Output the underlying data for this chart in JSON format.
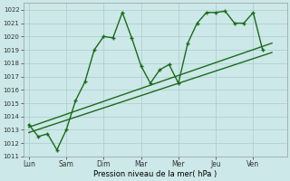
{
  "xlabel": "Pression niveau de la mer( hPa )",
  "bg_color": "#cce8e8",
  "grid_color": "#aacccc",
  "line_color": "#1a6b1a",
  "ylim": [
    1011,
    1022.5
  ],
  "yticks": [
    1011,
    1012,
    1013,
    1014,
    1015,
    1016,
    1017,
    1018,
    1019,
    1020,
    1021,
    1022
  ],
  "day_labels": [
    "Lun",
    "Sam",
    "Dim",
    "Mar",
    "Mer",
    "Jeu",
    "Ven"
  ],
  "day_positions": [
    0,
    2,
    4,
    6,
    8,
    10,
    12
  ],
  "xlim": [
    -0.3,
    13.8
  ],
  "series1_x": [
    0,
    0.5,
    1.0,
    1.5,
    2.0,
    2.5,
    3.0,
    3.5,
    4.0,
    4.5,
    5.0,
    5.5,
    6.0,
    6.5,
    7.0,
    7.5,
    8.0,
    8.5,
    9.0,
    9.5,
    10.0,
    10.5,
    11.0,
    11.5,
    12.0,
    12.5
  ],
  "series1_y": [
    1013.4,
    1012.5,
    1012.7,
    1011.5,
    1013.0,
    1015.2,
    1016.6,
    1019.0,
    1020.0,
    1019.9,
    1021.8,
    1019.9,
    1017.8,
    1016.5,
    1017.5,
    1017.9,
    1016.5,
    1019.5,
    1021.0,
    1021.8,
    1021.8,
    1021.9,
    1021.0,
    1021.0,
    1021.8,
    1019.0
  ],
  "trend1_x": [
    0,
    13
  ],
  "trend1_y": [
    1012.8,
    1018.8
  ],
  "trend2_x": [
    0,
    13
  ],
  "trend2_y": [
    1013.2,
    1019.5
  ],
  "linewidth": 1.0,
  "markersize": 3.5
}
